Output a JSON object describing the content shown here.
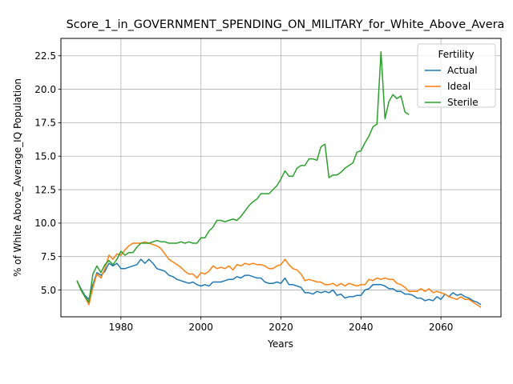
{
  "chart_data": {
    "type": "line",
    "title": "Score_1_in_GOVERNMENT_SPENDING_ON_MILITARY_for_White_Above_Avera",
    "xlabel": "Years",
    "ylabel": "% of White Above_Average_IQ Population",
    "xlim": [
      1965,
      2075
    ],
    "ylim": [
      3.0,
      23.8
    ],
    "x_ticks": [
      1980,
      2000,
      2020,
      2040,
      2060
    ],
    "y_ticks": [
      5.0,
      7.5,
      10.0,
      12.5,
      15.0,
      17.5,
      20.0,
      22.5
    ],
    "grid": true,
    "legend": {
      "title": "Fertility",
      "placement": "top-right"
    },
    "series": [
      {
        "name": "Actual",
        "color": "#1f77b4",
        "x": [
          1969,
          1970,
          1971,
          1972,
          1973,
          1974,
          1975,
          1976,
          1977,
          1978,
          1979,
          1980,
          1981,
          1982,
          1983,
          1984,
          1985,
          1986,
          1987,
          1988,
          1989,
          1990,
          1991,
          1992,
          1993,
          1994,
          1995,
          1996,
          1997,
          1998,
          1999,
          2000,
          2001,
          2002,
          2003,
          2004,
          2005,
          2006,
          2007,
          2008,
          2009,
          2010,
          2011,
          2012,
          2013,
          2014,
          2015,
          2016,
          2017,
          2018,
          2019,
          2020,
          2021,
          2022,
          2023,
          2024,
          2025,
          2026,
          2027,
          2028,
          2029,
          2030,
          2031,
          2032,
          2033,
          2034,
          2035,
          2036,
          2037,
          2038,
          2039,
          2040,
          2041,
          2042,
          2043,
          2044,
          2045,
          2046,
          2047,
          2048,
          2049,
          2050,
          2051,
          2052,
          2053,
          2054,
          2055,
          2056,
          2057,
          2058,
          2059,
          2060,
          2061,
          2062,
          2063,
          2064,
          2065,
          2066,
          2067,
          2068,
          2069,
          2070
        ],
        "y": [
          5.7,
          5.1,
          4.6,
          4.3,
          5.4,
          6.3,
          6.1,
          6.4,
          7.0,
          6.8,
          7.0,
          6.6,
          6.6,
          6.7,
          6.8,
          6.9,
          7.3,
          7.0,
          7.3,
          7.0,
          6.6,
          6.5,
          6.4,
          6.1,
          6.0,
          5.8,
          5.7,
          5.6,
          5.5,
          5.6,
          5.4,
          5.3,
          5.4,
          5.3,
          5.6,
          5.6,
          5.6,
          5.7,
          5.8,
          5.8,
          6.0,
          5.9,
          6.1,
          6.1,
          6.0,
          5.9,
          5.9,
          5.6,
          5.5,
          5.5,
          5.6,
          5.5,
          5.9,
          5.4,
          5.4,
          5.3,
          5.2,
          4.8,
          4.8,
          4.7,
          4.9,
          4.8,
          4.9,
          4.8,
          5.0,
          4.6,
          4.7,
          4.4,
          4.5,
          4.5,
          4.6,
          4.6,
          5.0,
          5.1,
          5.4,
          5.4,
          5.4,
          5.3,
          5.1,
          5.1,
          4.9,
          4.9,
          4.7,
          4.7,
          4.6,
          4.4,
          4.4,
          4.2,
          4.3,
          4.2,
          4.5,
          4.3,
          4.7,
          4.5,
          4.8,
          4.6,
          4.7,
          4.5,
          4.4,
          4.2,
          4.1,
          3.9
        ]
      },
      {
        "name": "Ideal",
        "color": "#ff7f0e",
        "x": [
          1969,
          1970,
          1971,
          1972,
          1973,
          1974,
          1975,
          1976,
          1977,
          1978,
          1979,
          1980,
          1981,
          1982,
          1983,
          1984,
          1985,
          1986,
          1987,
          1988,
          1989,
          1990,
          1991,
          1992,
          1993,
          1994,
          1995,
          1996,
          1997,
          1998,
          1999,
          2000,
          2001,
          2002,
          2003,
          2004,
          2005,
          2006,
          2007,
          2008,
          2009,
          2010,
          2011,
          2012,
          2013,
          2014,
          2015,
          2016,
          2017,
          2018,
          2019,
          2020,
          2021,
          2022,
          2023,
          2024,
          2025,
          2026,
          2027,
          2028,
          2029,
          2030,
          2031,
          2032,
          2033,
          2034,
          2035,
          2036,
          2037,
          2038,
          2039,
          2040,
          2041,
          2042,
          2043,
          2044,
          2045,
          2046,
          2047,
          2048,
          2049,
          2050,
          2051,
          2052,
          2053,
          2054,
          2055,
          2056,
          2057,
          2058,
          2059,
          2060,
          2061,
          2062,
          2063,
          2064,
          2065,
          2066,
          2067,
          2068,
          2069,
          2070
        ],
        "y": [
          5.7,
          5.0,
          4.5,
          3.9,
          5.2,
          6.2,
          5.9,
          6.6,
          7.6,
          7.3,
          7.7,
          7.6,
          8.0,
          8.3,
          8.5,
          8.5,
          8.5,
          8.6,
          8.5,
          8.4,
          8.3,
          8.1,
          7.7,
          7.3,
          7.1,
          6.9,
          6.7,
          6.4,
          6.2,
          6.2,
          5.9,
          6.3,
          6.2,
          6.4,
          6.8,
          6.6,
          6.7,
          6.6,
          6.8,
          6.5,
          6.9,
          6.8,
          7.0,
          6.9,
          7.0,
          6.9,
          6.9,
          6.8,
          6.6,
          6.6,
          6.8,
          6.9,
          7.3,
          6.9,
          6.6,
          6.5,
          6.2,
          5.7,
          5.8,
          5.7,
          5.6,
          5.6,
          5.4,
          5.4,
          5.5,
          5.3,
          5.5,
          5.3,
          5.5,
          5.4,
          5.3,
          5.4,
          5.4,
          5.8,
          5.7,
          5.9,
          5.8,
          5.9,
          5.8,
          5.8,
          5.5,
          5.4,
          5.2,
          4.9,
          4.9,
          4.9,
          5.1,
          4.9,
          5.1,
          4.8,
          4.9,
          4.8,
          4.7,
          4.5,
          4.4,
          4.3,
          4.5,
          4.3,
          4.3,
          4.1,
          3.9,
          3.7
        ]
      },
      {
        "name": "Sterile",
        "color": "#2ca02c",
        "x": [
          1969,
          1970,
          1971,
          1972,
          1973,
          1974,
          1975,
          1976,
          1977,
          1978,
          1979,
          1980,
          1981,
          1982,
          1983,
          1984,
          1985,
          1986,
          1987,
          1988,
          1989,
          1990,
          1991,
          1992,
          1993,
          1994,
          1995,
          1996,
          1997,
          1998,
          1999,
          2000,
          2001,
          2002,
          2003,
          2004,
          2005,
          2006,
          2007,
          2008,
          2009,
          2010,
          2011,
          2012,
          2013,
          2014,
          2015,
          2016,
          2017,
          2018,
          2019,
          2020,
          2021,
          2022,
          2023,
          2024,
          2025,
          2026,
          2027,
          2028,
          2029,
          2030,
          2031,
          2032,
          2033,
          2034,
          2035,
          2036,
          2037,
          2038,
          2039,
          2040,
          2041,
          2042,
          2043,
          2044,
          2045,
          2046,
          2047,
          2048,
          2049,
          2050,
          2051,
          2052
        ],
        "y": [
          5.7,
          5.0,
          4.5,
          4.1,
          6.2,
          6.8,
          6.3,
          6.9,
          7.2,
          6.9,
          7.3,
          7.9,
          7.6,
          7.8,
          7.8,
          8.2,
          8.5,
          8.5,
          8.5,
          8.6,
          8.7,
          8.6,
          8.6,
          8.5,
          8.5,
          8.5,
          8.6,
          8.5,
          8.6,
          8.5,
          8.5,
          8.9,
          8.9,
          9.4,
          9.7,
          10.2,
          10.2,
          10.1,
          10.2,
          10.3,
          10.2,
          10.5,
          10.9,
          11.3,
          11.6,
          11.8,
          12.2,
          12.2,
          12.2,
          12.5,
          12.8,
          13.3,
          13.9,
          13.5,
          13.5,
          14.1,
          14.3,
          14.3,
          14.8,
          14.8,
          14.7,
          15.7,
          15.9,
          13.4,
          13.6,
          13.6,
          13.8,
          14.1,
          14.3,
          14.5,
          15.3,
          15.4,
          16.0,
          16.5,
          17.2,
          17.4,
          22.8,
          17.8,
          19.1,
          19.6,
          19.3,
          19.5,
          18.3,
          18.1
        ]
      }
    ]
  }
}
